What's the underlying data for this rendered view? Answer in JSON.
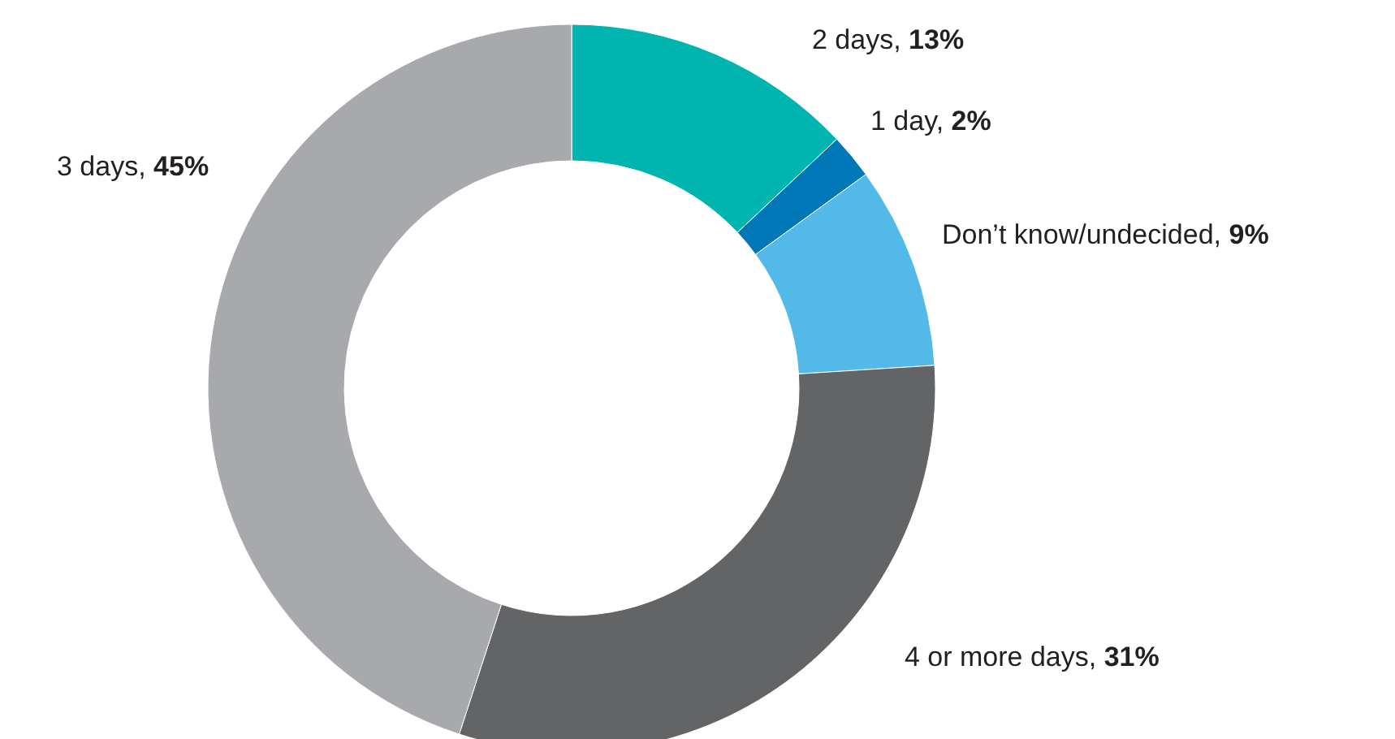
{
  "chart_data": {
    "type": "donut",
    "categories": [
      "2 days",
      "1 day",
      "Don’t know/undecided",
      "4 or more days",
      "3 days"
    ],
    "values": [
      13,
      2,
      9,
      31,
      45
    ],
    "colors": [
      "#00b5b0",
      "#0077b6",
      "#52b9e9",
      "#636466",
      "#a7a9ac"
    ],
    "value_labels": [
      ", 13%",
      ", 2%",
      ", 9%",
      ", 31%",
      ", 45%"
    ]
  }
}
